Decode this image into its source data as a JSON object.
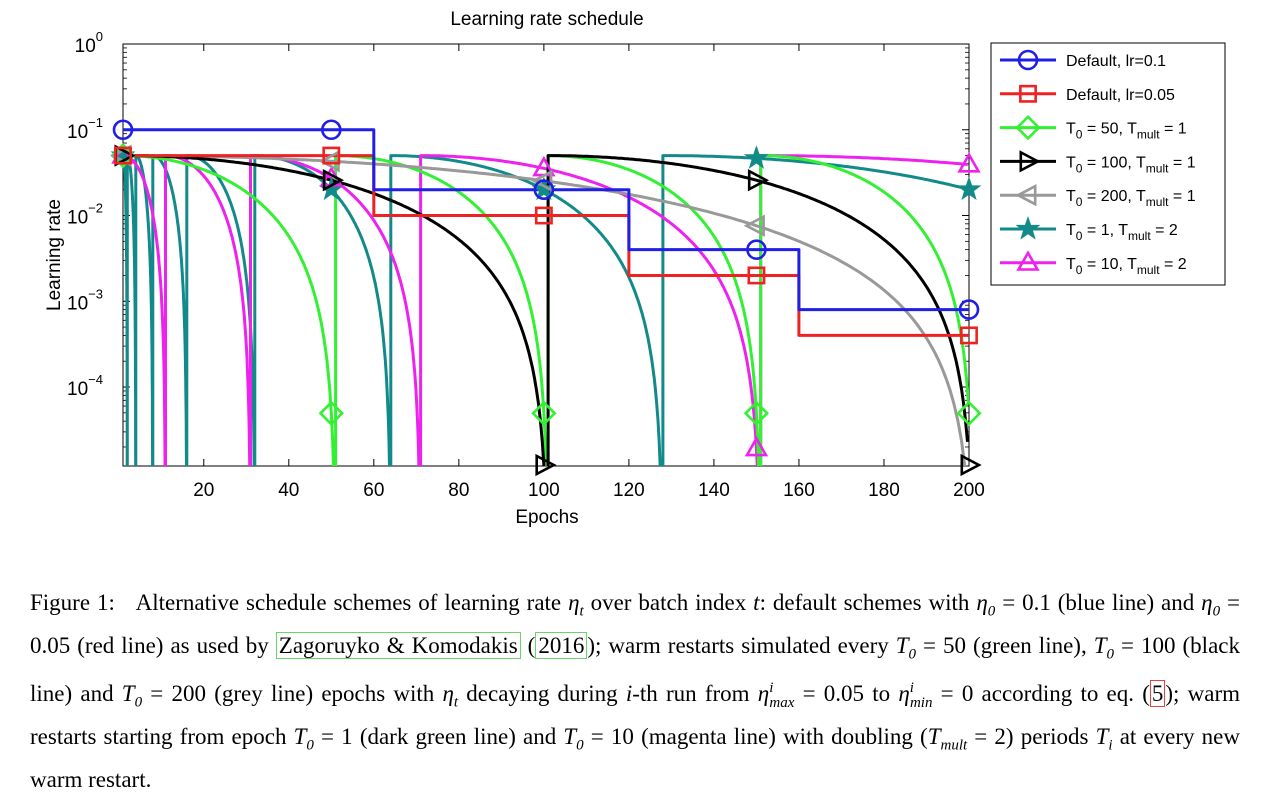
{
  "chart_data": {
    "type": "line",
    "title": "Learning rate schedule",
    "xlabel": "Epochs",
    "ylabel": "Learning rate",
    "xlim": [
      1,
      200
    ],
    "ylim": [
      1.2e-05,
      1
    ],
    "yscale": "log",
    "xticks": [
      20,
      40,
      60,
      80,
      100,
      120,
      140,
      160,
      180,
      200
    ],
    "xtick_labels": [
      "20",
      "40",
      "60",
      "80",
      "100",
      "120",
      "140",
      "160",
      "180",
      "200"
    ],
    "yticks": [
      1,
      0.1,
      0.01,
      0.001,
      0.0001
    ],
    "ytick_labels": [
      {
        "base": "10",
        "exp": "0"
      },
      {
        "base": "10",
        "exp": "−1"
      },
      {
        "base": "10",
        "exp": "−2"
      },
      {
        "base": "10",
        "exp": "−3"
      },
      {
        "base": "10",
        "exp": "−4"
      }
    ],
    "grid": false,
    "legend_position": "outside-right",
    "series": [
      {
        "name": "Default, lr=0.1",
        "legend_main": "Default, lr=0.1",
        "color": "#1f1fe6",
        "marker": "circle",
        "kind": "step",
        "steps": [
          [
            0,
            0.1
          ],
          [
            60,
            0.02
          ],
          [
            120,
            0.004
          ],
          [
            160,
            0.0008
          ]
        ],
        "marker_x": [
          1,
          50,
          100,
          150,
          200
        ]
      },
      {
        "name": "Default, lr=0.05",
        "legend_main": "Default, lr=0.05",
        "color": "#ee2222",
        "marker": "square",
        "kind": "step",
        "steps": [
          [
            0,
            0.05
          ],
          [
            60,
            0.01
          ],
          [
            120,
            0.002
          ],
          [
            160,
            0.0004
          ]
        ],
        "marker_x": [
          1,
          50,
          100,
          150,
          200
        ]
      },
      {
        "name": "T0 = 50, Tmult = 1",
        "legend_main": "T",
        "legend_sub0": "0",
        "legend_mid": " = 50, T",
        "legend_sub1": "mult",
        "legend_end": " = 1",
        "color": "#33f033",
        "marker": "diamond",
        "kind": "cosine",
        "T0": 50,
        "Tmult": 1,
        "marker_x": [
          1,
          50,
          100,
          150,
          200
        ]
      },
      {
        "name": "T0 = 100, Tmult = 1",
        "legend_main": "T",
        "legend_sub0": "0",
        "legend_mid": " = 100, T",
        "legend_sub1": "mult",
        "legend_end": " = 1",
        "color": "#000000",
        "marker": "triangle-right",
        "kind": "cosine",
        "T0": 100,
        "Tmult": 1,
        "marker_x": [
          1,
          50,
          100,
          150,
          200
        ]
      },
      {
        "name": "T0 = 200, Tmult = 1",
        "legend_main": "T",
        "legend_sub0": "0",
        "legend_mid": " = 200, T",
        "legend_sub1": "mult",
        "legend_end": " = 1",
        "color": "#999999",
        "marker": "triangle-left",
        "kind": "cosine",
        "T0": 200,
        "Tmult": 1,
        "marker_x": [
          1,
          50,
          100,
          150,
          200
        ]
      },
      {
        "name": "T0 = 1, Tmult = 2",
        "legend_main": "T",
        "legend_sub0": "0",
        "legend_mid": " = 1, T",
        "legend_sub1": "mult",
        "legend_end": " = 2",
        "color": "#138a8a",
        "marker": "star",
        "kind": "cosine",
        "T0": 1,
        "Tmult": 2,
        "marker_x": [
          1,
          50,
          100,
          150,
          200
        ]
      },
      {
        "name": "T0 = 10, Tmult = 2",
        "legend_main": "T",
        "legend_sub0": "0",
        "legend_mid": " = 10, T",
        "legend_sub1": "mult",
        "legend_end": " = 2",
        "color": "#ee22ee",
        "marker": "triangle-up",
        "kind": "cosine",
        "T0": 10,
        "Tmult": 2,
        "marker_x": [
          1,
          50,
          100,
          150,
          200
        ]
      }
    ],
    "eta_max": 0.05
  },
  "caption": {
    "label": "Figure 1:",
    "p1": "Alternative schedule schemes of learning rate",
    "eta": "η",
    "t": "t",
    "p2": " over batch index ",
    "p3": ": default schemes with ",
    "eq1": " = 0.1",
    "p4": " (blue line) and ",
    "eq2": " = 0.05",
    "p5": " (red line) as used by ",
    "cite_authors": "Zagoruyko & Komodakis",
    "cite_year": "2016",
    "p6": "; warm restarts simulated every ",
    "T": "T",
    "zero": "0",
    "eq50": " = 50",
    "p7": " (green line), ",
    "eq100": " = 100",
    "p8": " (black line) and ",
    "eq200": " = 200",
    "p9": " (grey line) epochs with ",
    "p10": " decaying during ",
    "i": "i",
    "p11": "-th run from ",
    "max": "max",
    "min": "min",
    "eq005": " = 0.05",
    "p12": " to ",
    "eq0": " = 0",
    "p13": " according to eq. (",
    "eqref": "5",
    "p14": "); warm restarts starting from epoch ",
    "eq1b": " = 1",
    "p15": " (dark green line) and ",
    "eq10": " = 10",
    "p16": " (magenta line) with doubling (",
    "mult": "mult",
    "eq2b": " = 2",
    "p17": ") periods ",
    "p18": " at every new warm restart."
  }
}
